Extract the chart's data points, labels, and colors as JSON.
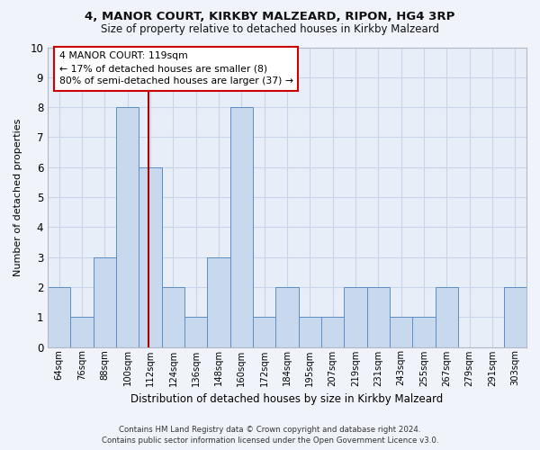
{
  "title_line1": "4, MANOR COURT, KIRKBY MALZEARD, RIPON, HG4 3RP",
  "title_line2": "Size of property relative to detached houses in Kirkby Malzeard",
  "xlabel": "Distribution of detached houses by size in Kirkby Malzeard",
  "ylabel": "Number of detached properties",
  "categories": [
    "64sqm",
    "76sqm",
    "88sqm",
    "100sqm",
    "112sqm",
    "124sqm",
    "136sqm",
    "148sqm",
    "160sqm",
    "172sqm",
    "184sqm",
    "195sqm",
    "207sqm",
    "219sqm",
    "231sqm",
    "243sqm",
    "255sqm",
    "267sqm",
    "279sqm",
    "291sqm",
    "303sqm"
  ],
  "values": [
    2,
    1,
    3,
    8,
    6,
    2,
    1,
    3,
    8,
    1,
    2,
    1,
    1,
    2,
    2,
    1,
    1,
    2,
    0,
    0,
    2
  ],
  "bar_color": "#c9d9ed",
  "bar_edge_color": "#5b8ec4",
  "vline_index": 4,
  "vline_color": "#aa0000",
  "annotation_text": "4 MANOR COURT: 119sqm\n← 17% of detached houses are smaller (8)\n80% of semi-detached houses are larger (37) →",
  "annotation_box_color": "#ffffff",
  "annotation_box_edge_color": "#cc0000",
  "ylim": [
    0,
    10
  ],
  "yticks": [
    0,
    1,
    2,
    3,
    4,
    5,
    6,
    7,
    8,
    9,
    10
  ],
  "grid_color": "#c8d4e8",
  "footer_line1": "Contains HM Land Registry data © Crown copyright and database right 2024.",
  "footer_line2": "Contains public sector information licensed under the Open Government Licence v3.0.",
  "fig_bg_color": "#f0f4fa",
  "axes_bg_color": "#e8eef8"
}
